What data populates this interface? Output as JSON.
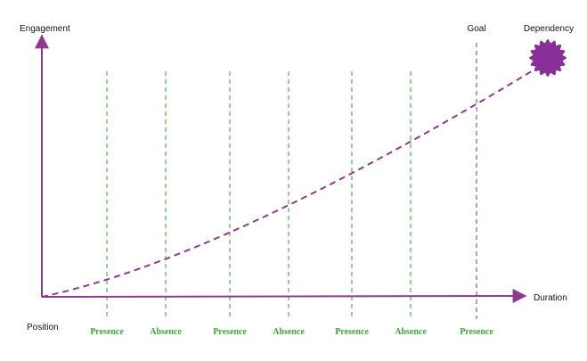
{
  "axes": {
    "y_label": "Engagement",
    "x_label": "Duration",
    "origin_label": "Position"
  },
  "phases": [
    "Presence",
    "Absence",
    "Presence",
    "Absence",
    "Presence",
    "Absence",
    "Presence"
  ],
  "goal": "Goal",
  "endpoint": "Dependency"
}
